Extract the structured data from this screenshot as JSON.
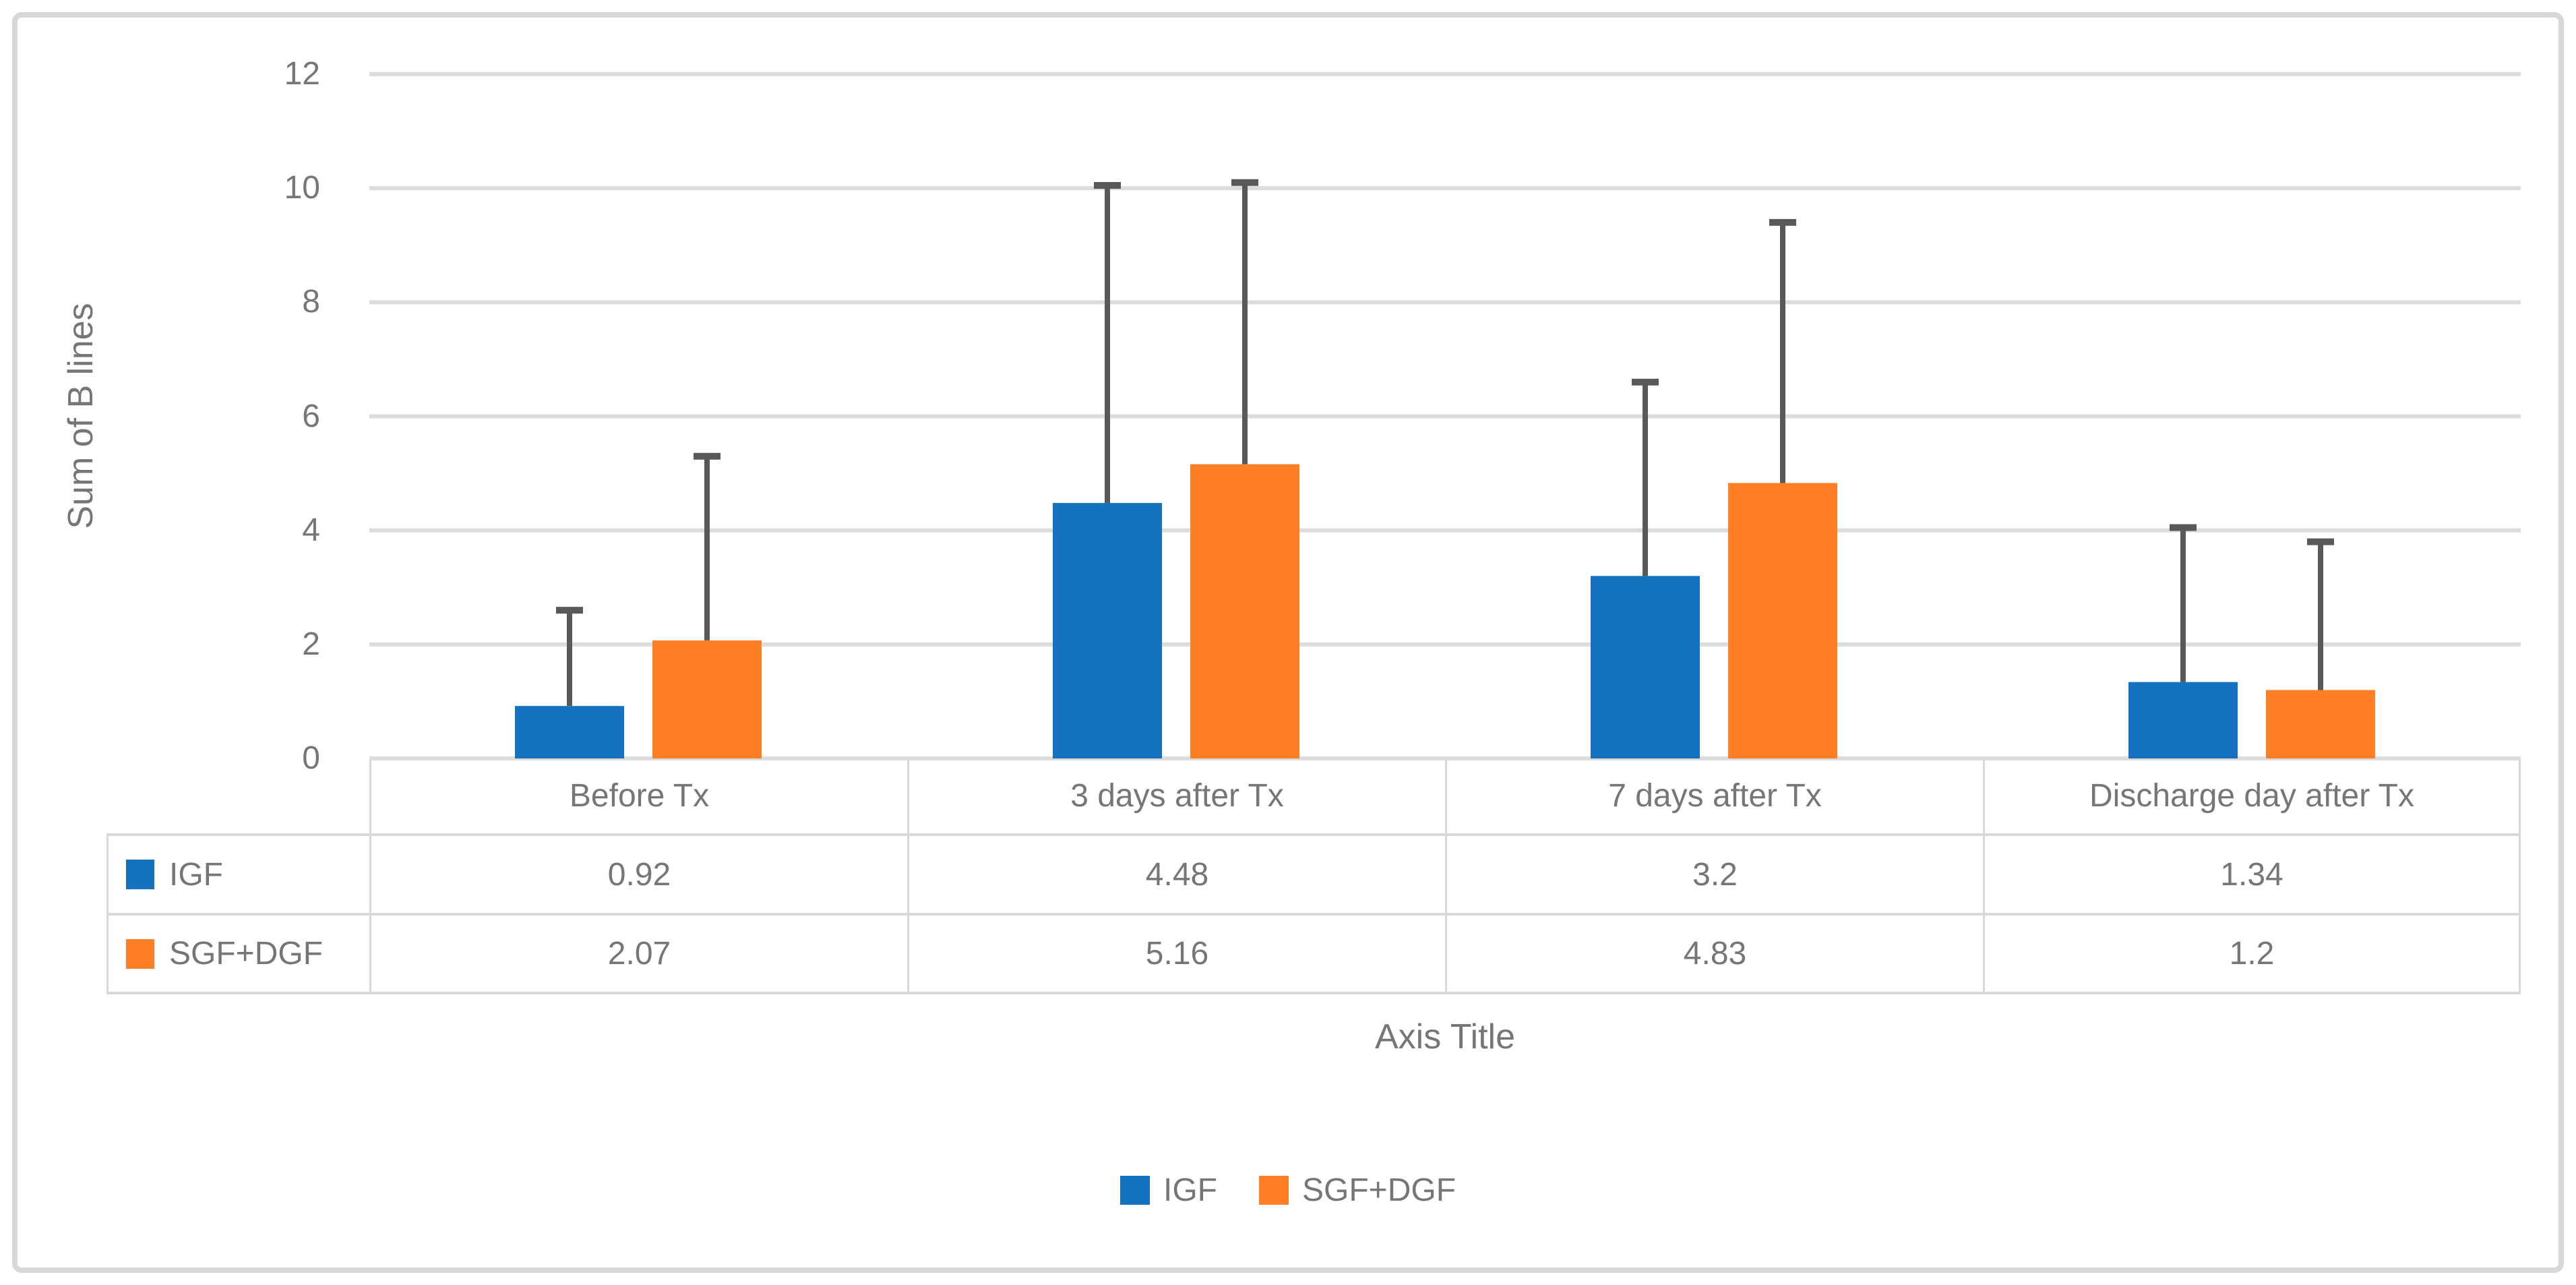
{
  "chart_data": {
    "type": "bar",
    "title": "",
    "categories": [
      "Before Tx",
      "3 days after Tx",
      "7 days after Tx",
      "Discharge day after Tx"
    ],
    "series": [
      {
        "name": "IGF",
        "color": "#1572BF",
        "values": [
          0.92,
          4.48,
          3.2,
          1.34
        ],
        "error_bar_tops": [
          2.6,
          10.05,
          6.6,
          4.05
        ]
      },
      {
        "name": "SGF+DGF",
        "color": "#FF7F27",
        "values": [
          2.07,
          5.16,
          4.83,
          1.2
        ],
        "error_bar_tops": [
          5.3,
          10.1,
          9.4,
          3.8
        ]
      }
    ],
    "xlabel": "Axis Title",
    "ylabel": "Sum of B lines",
    "ylim": [
      0,
      12
    ],
    "yticks": [
      0,
      2,
      4,
      6,
      8,
      10,
      12
    ],
    "grid": true,
    "legend_position": "bottom",
    "colors": {
      "gridline": "#DCDCDC",
      "error_bar": "#595959",
      "text": "#767676",
      "frame_border": "#D8D8D8",
      "table_border": "#D9D9D9"
    }
  },
  "table": {
    "row_labels": [
      "IGF",
      "SGF+DGF"
    ],
    "rows": [
      [
        "0.92",
        "4.48",
        "3.2",
        "1.34"
      ],
      [
        "2.07",
        "5.16",
        "4.83",
        "1.2"
      ]
    ]
  },
  "legend": {
    "items": [
      {
        "label": "IGF"
      },
      {
        "label": "SGF+DGF"
      }
    ]
  }
}
